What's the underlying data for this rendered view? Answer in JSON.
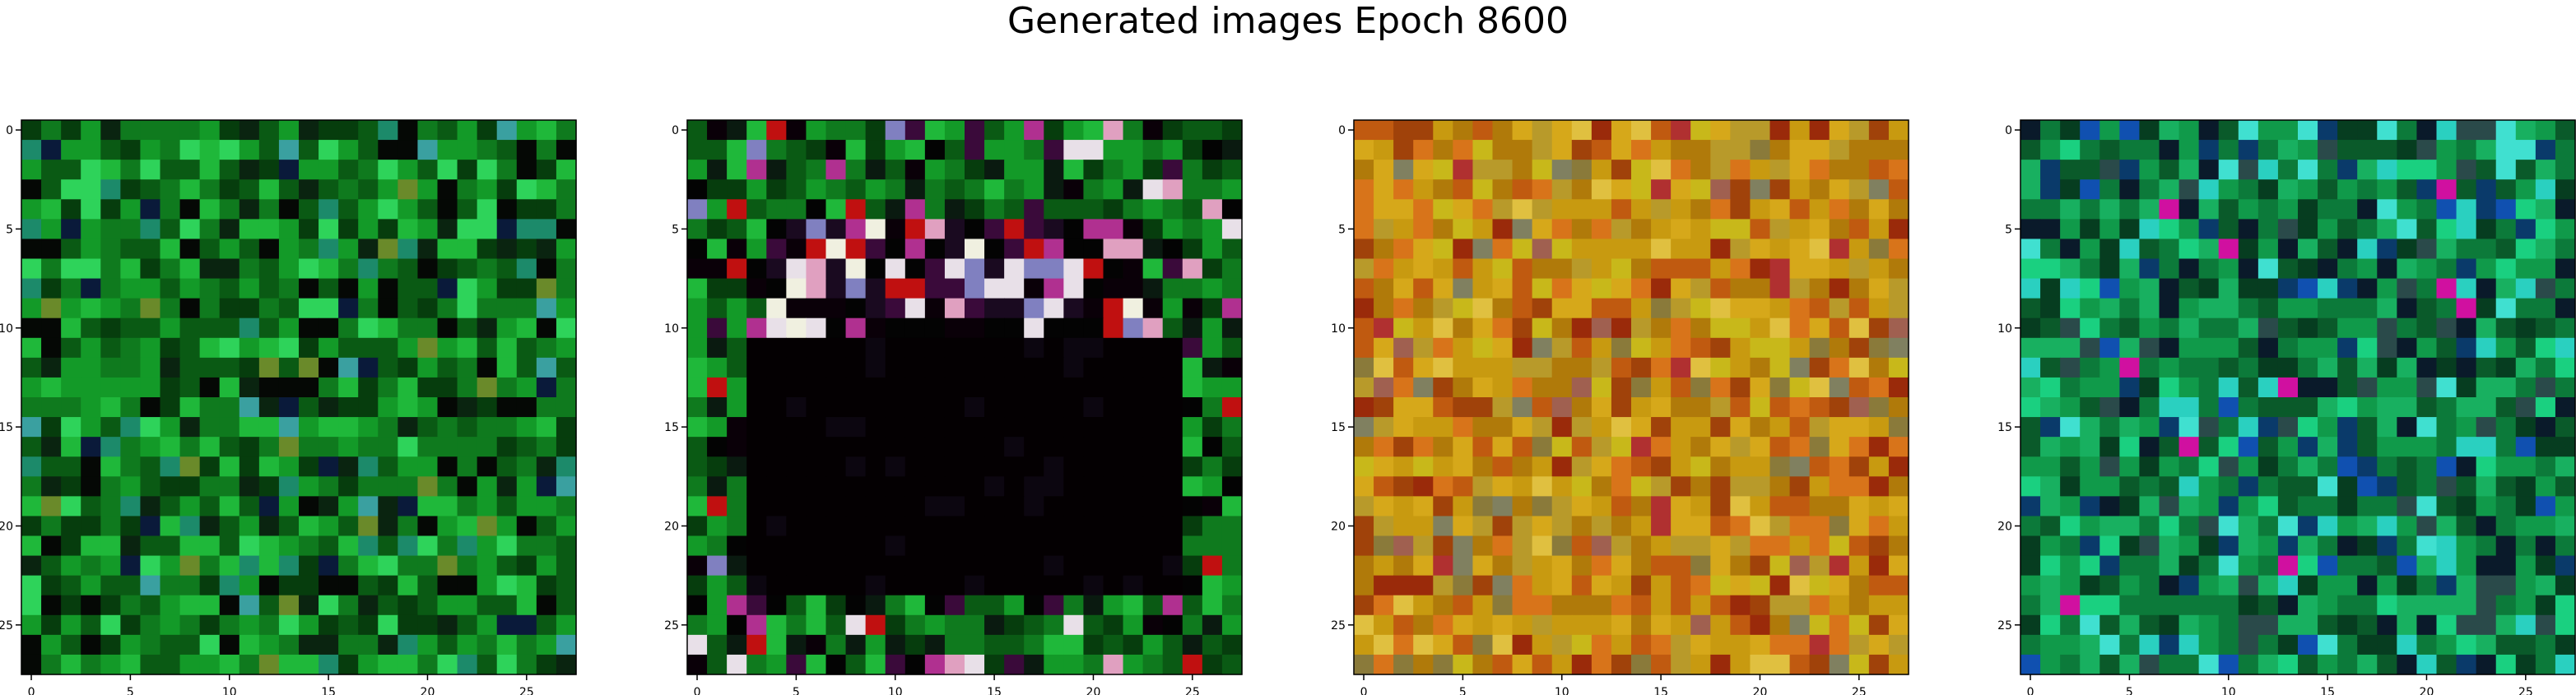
{
  "title": "Generated images Epoch 8600",
  "chart_data": {
    "type": "heatmap",
    "grid_size": [
      28,
      28
    ],
    "xlim": [
      -0.5,
      27.5
    ],
    "ylim": [
      27.5,
      -0.5
    ],
    "x_ticks": [
      0,
      5,
      10,
      15,
      20,
      25
    ],
    "y_ticks": [
      0,
      5,
      10,
      15,
      20,
      25
    ],
    "x_tick_labels": [
      "0",
      "5",
      "10",
      "15",
      "20",
      "25"
    ],
    "y_tick_labels": [
      "0",
      "5",
      "10",
      "15",
      "20",
      "25"
    ],
    "panels": [
      {
        "palette": [
          "#0a5a14",
          "#0f7a1e",
          "#139a28",
          "#1fb83a",
          "#2ed35a",
          "#063d0d",
          "#0a2410",
          "#1c8a6a",
          "#3aa0a0",
          "#0a1a3a",
          "#6a8a2a",
          "#050805"
        ],
        "weights": [
          15,
          18,
          15,
          12,
          6,
          10,
          5,
          5,
          3,
          2,
          2,
          7
        ]
      },
      {
        "palette": [
          "#0a5a14",
          "#0f7a1e",
          "#139a28",
          "#1fb83a",
          "#063d0d",
          "#0a1a10",
          "#030303",
          "#0a0008",
          "#3a0a3a",
          "#e8e0e8",
          "#b03090",
          "#c01010",
          "#e0a0c0",
          "#8080c0"
        ],
        "weights": [
          14,
          16,
          14,
          10,
          10,
          8,
          6,
          4,
          3,
          3,
          3,
          2,
          3,
          2
        ],
        "inner_dark_region": {
          "row_range": [
            11,
            23
          ],
          "col_range": [
            3,
            24
          ],
          "color": "#040002"
        },
        "bright_band": {
          "row_range": [
            5,
            10
          ],
          "col_range": [
            4,
            22
          ]
        }
      },
      {
        "palette": [
          "#c89a10",
          "#d6a81a",
          "#b07a0a",
          "#c05a10",
          "#d8741a",
          "#a0420a",
          "#b89a2a",
          "#c8b81a",
          "#9a2a0a",
          "#8a7a3a",
          "#e0c040",
          "#a06050",
          "#b03030",
          "#808060"
        ],
        "weights": [
          16,
          14,
          12,
          10,
          10,
          6,
          8,
          6,
          4,
          4,
          4,
          2,
          2,
          2
        ]
      },
      {
        "palette": [
          "#0c7a3a",
          "#109a4a",
          "#18b060",
          "#0a5a2a",
          "#063d20",
          "#1ad080",
          "#2ad0c0",
          "#0a3a6a",
          "#1050b0",
          "#0a1a2a",
          "#2a4a4a",
          "#40e0d0",
          "#d010a0"
        ],
        "weights": [
          16,
          16,
          12,
          12,
          8,
          6,
          5,
          5,
          3,
          6,
          5,
          3,
          1
        ]
      }
    ]
  }
}
